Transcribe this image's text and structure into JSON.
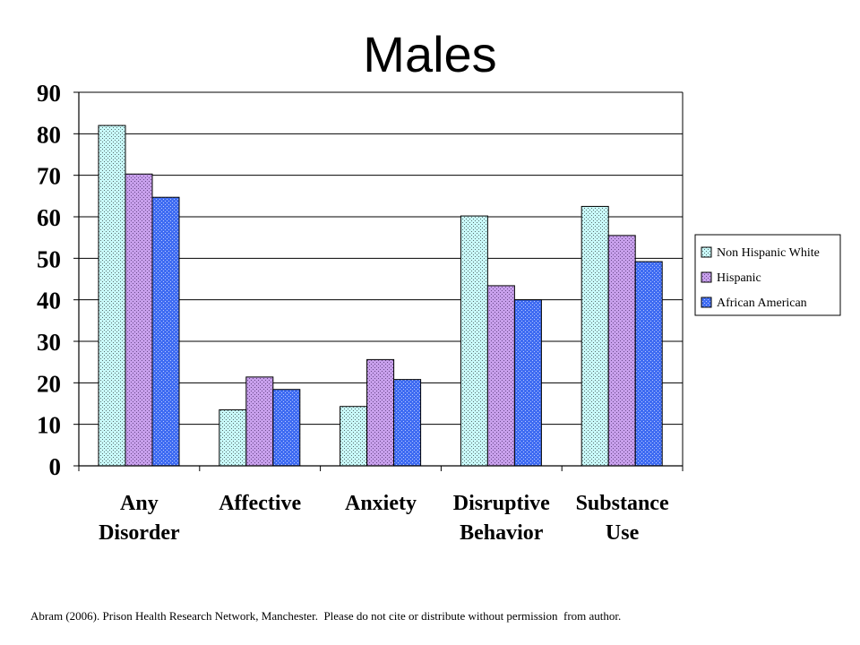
{
  "chart_data": {
    "type": "bar",
    "title": "Males",
    "xlabel": "",
    "ylabel": "",
    "ylim": [
      0,
      90
    ],
    "yticks": [
      0,
      10,
      20,
      30,
      40,
      50,
      60,
      70,
      80,
      90
    ],
    "grid": true,
    "legend_position": "right",
    "categories": [
      [
        "Any",
        "Disorder"
      ],
      [
        "Affective"
      ],
      [
        "Anxiety"
      ],
      [
        "Disruptive",
        "Behavior"
      ],
      [
        "Substance",
        "Use"
      ]
    ],
    "series": [
      {
        "name": "Non Hispanic White",
        "values": [
          82,
          13.5,
          14.3,
          60.2,
          62.5
        ],
        "color": "#c9fafa",
        "dot": "#5a6e6e"
      },
      {
        "name": "Hispanic",
        "values": [
          70.3,
          21.4,
          25.6,
          43.4,
          55.5
        ],
        "color": "#c8a0ec",
        "dot": "#6a4a8a"
      },
      {
        "name": "African American",
        "values": [
          64.7,
          18.4,
          20.8,
          40,
          49.2
        ],
        "color": "#3f6cf2",
        "dot": "#b8c8ff"
      }
    ]
  },
  "footnote": "Abram (2006). Prison Health Research Network, Manchester.  Please do not cite or distribute without permission  from author."
}
